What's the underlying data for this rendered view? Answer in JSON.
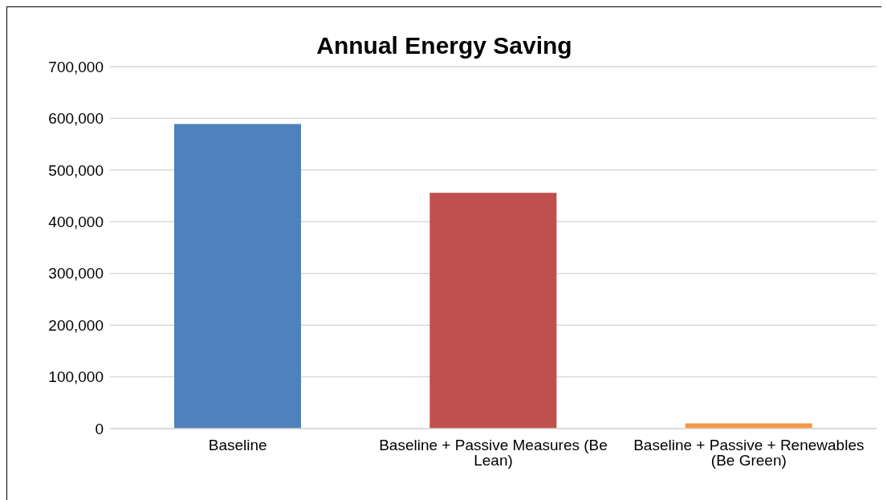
{
  "chart_data": {
    "type": "bar",
    "title": "Annual Energy Saving",
    "categories": [
      "Baseline",
      "Baseline + Passive Measures (Be Lean)",
      "Baseline + Passive + Renewables (Be Green)"
    ],
    "values": [
      589000,
      456000,
      10000
    ],
    "colors": [
      "#4f81bd",
      "#c0504d",
      "#f79646"
    ],
    "ylim": [
      0,
      700000
    ],
    "yticks": [
      {
        "value": 0,
        "label": "0"
      },
      {
        "value": 100000,
        "label": "100,000"
      },
      {
        "value": 200000,
        "label": "200,000"
      },
      {
        "value": 300000,
        "label": "300,000"
      },
      {
        "value": 400000,
        "label": "400,000"
      },
      {
        "value": 500000,
        "label": "500,000"
      },
      {
        "value": 600000,
        "label": "600,000"
      },
      {
        "value": 700000,
        "label": "700,000"
      }
    ],
    "grid": "y",
    "legend": false
  }
}
